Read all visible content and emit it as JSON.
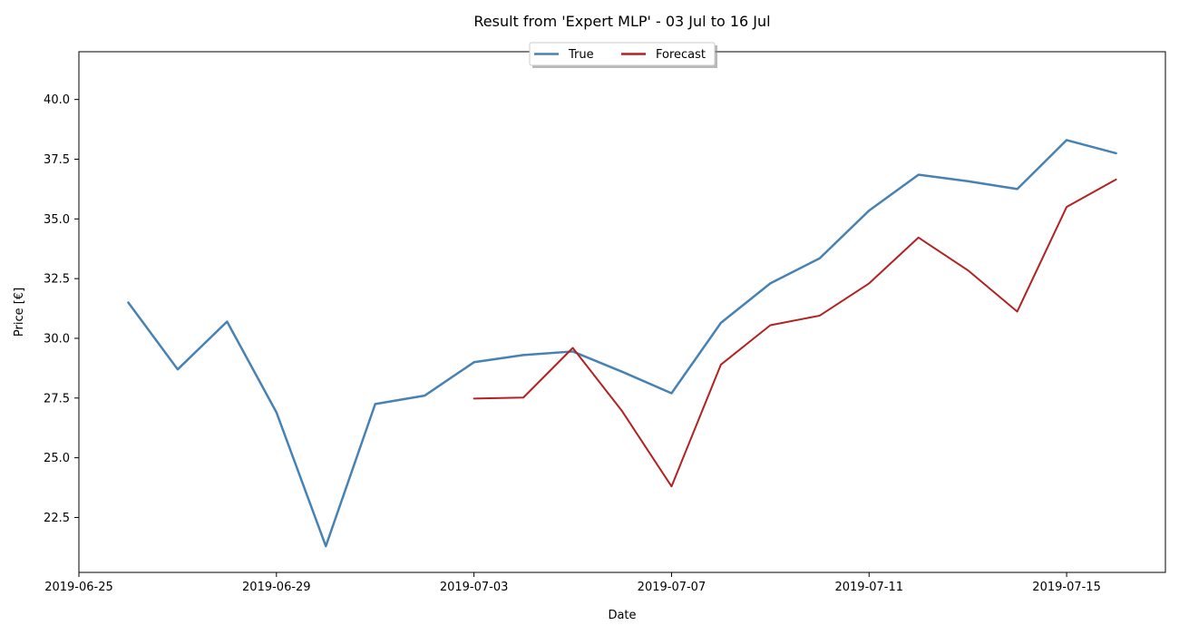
{
  "chart_data": {
    "type": "line",
    "title": "Result from 'Expert MLP' - 03 Jul to 16 Jul",
    "xlabel": "Date",
    "ylabel": "Price [€]",
    "xlim": [
      "2019-06-25",
      "2019-07-17"
    ],
    "ylim": [
      20.2,
      42.0
    ],
    "x_ticks": [
      "2019-06-25",
      "2019-06-29",
      "2019-07-03",
      "2019-07-07",
      "2019-07-11",
      "2019-07-15"
    ],
    "y_ticks": [
      22.5,
      25.0,
      27.5,
      30.0,
      32.5,
      35.0,
      37.5,
      40.0
    ],
    "grid": false,
    "legend_position": "top-center",
    "series": [
      {
        "name": "True",
        "color": "#4682b4",
        "x": [
          "2019-06-26",
          "2019-06-27",
          "2019-06-28",
          "2019-06-29",
          "2019-06-30",
          "2019-07-01",
          "2019-07-02",
          "2019-07-03",
          "2019-07-04",
          "2019-07-05",
          "2019-07-06",
          "2019-07-07",
          "2019-07-08",
          "2019-07-09",
          "2019-07-10",
          "2019-07-11",
          "2019-07-12",
          "2019-07-13",
          "2019-07-14",
          "2019-07-15",
          "2019-07-16"
        ],
        "values": [
          31.5,
          28.7,
          30.7,
          26.9,
          21.3,
          27.25,
          27.6,
          29.0,
          29.3,
          29.45,
          28.6,
          27.7,
          30.65,
          32.3,
          33.35,
          35.35,
          36.85,
          36.58,
          36.25,
          38.3,
          37.75
        ]
      },
      {
        "name": "Forecast",
        "color": "#b22222",
        "x": [
          "2019-07-03",
          "2019-07-04",
          "2019-07-05",
          "2019-07-06",
          "2019-07-07",
          "2019-07-08",
          "2019-07-09",
          "2019-07-10",
          "2019-07-11",
          "2019-07-12",
          "2019-07-13",
          "2019-07-14",
          "2019-07-15",
          "2019-07-16"
        ],
        "values": [
          27.48,
          27.52,
          29.6,
          26.95,
          23.8,
          28.9,
          30.55,
          30.95,
          32.3,
          34.22,
          32.85,
          31.12,
          35.5,
          36.65
        ]
      }
    ]
  }
}
